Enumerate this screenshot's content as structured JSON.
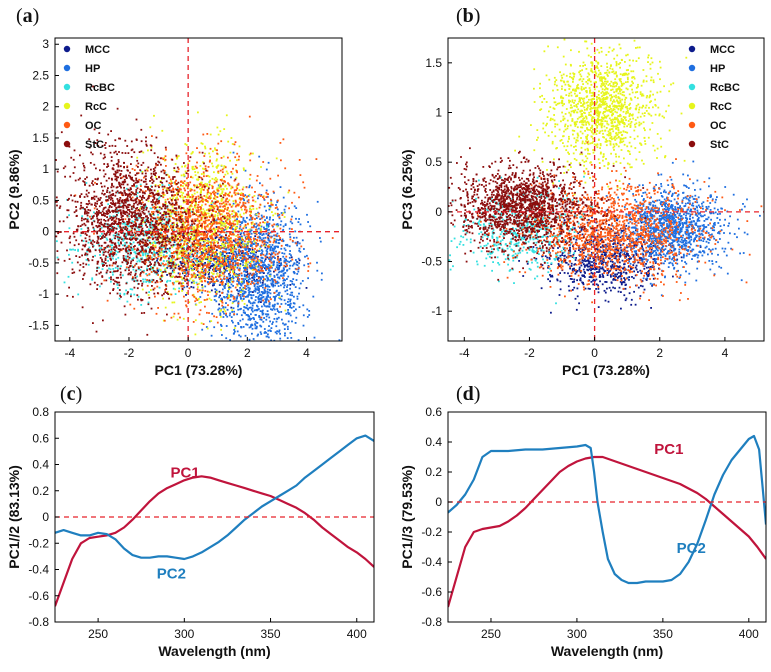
{
  "chart_data": [
    {
      "id": "a",
      "panel_label": "a",
      "type": "scatter",
      "xlabel": "PC1 (73.28%)",
      "ylabel": "PC2 (9.86%)",
      "xlim": [
        -4.5,
        5.2
      ],
      "ylim": [
        -1.75,
        3.1
      ],
      "xticks": [
        -4,
        -2,
        0,
        2,
        4
      ],
      "yticks": [
        -1.5,
        -1,
        -0.5,
        0,
        0.5,
        1,
        1.5,
        2,
        2.5,
        3
      ],
      "ref_lines": {
        "x": 0,
        "y": 0
      },
      "legend": "top-left",
      "series": [
        {
          "name": "MCC",
          "color": "#0d1b8c",
          "n": 500,
          "cx": 1.0,
          "cy": -0.45,
          "sx": 1.0,
          "sy": 0.25
        },
        {
          "name": "HP",
          "color": "#1f6fe0",
          "n": 1300,
          "cx": 2.4,
          "cy": -0.7,
          "sx": 0.8,
          "sy": 0.6
        },
        {
          "name": "RcBC",
          "color": "#33e0e0",
          "n": 600,
          "cx": -1.5,
          "cy": -0.2,
          "sx": 1.1,
          "sy": 0.4
        },
        {
          "name": "RcC",
          "color": "#e6f51c",
          "n": 1000,
          "cx": 0.5,
          "cy": 0.1,
          "sx": 1.0,
          "sy": 0.6
        },
        {
          "name": "OC",
          "color": "#ff5a14",
          "n": 1400,
          "cx": 0.6,
          "cy": 0.0,
          "sx": 1.3,
          "sy": 0.55
        },
        {
          "name": "StC",
          "color": "#8b0d0d",
          "n": 1600,
          "cx": -2.0,
          "cy": 0.2,
          "sx": 1.1,
          "sy": 0.55
        }
      ]
    },
    {
      "id": "b",
      "panel_label": "b",
      "type": "scatter",
      "xlabel": "PC1 (73.28%)",
      "ylabel": "PC3 (6.25%)",
      "xlim": [
        -4.5,
        5.2
      ],
      "ylim": [
        -1.3,
        1.75
      ],
      "xticks": [
        -4,
        -2,
        0,
        2,
        4
      ],
      "yticks": [
        -1,
        -0.5,
        0,
        0.5,
        1,
        1.5
      ],
      "ref_lines": {
        "x": 0,
        "y": 0
      },
      "legend": "top-right",
      "series": [
        {
          "name": "MCC",
          "color": "#0d1b8c",
          "n": 700,
          "cx": 0.3,
          "cy": -0.5,
          "sx": 0.9,
          "sy": 0.18
        },
        {
          "name": "HP",
          "color": "#1f6fe0",
          "n": 1100,
          "cx": 2.4,
          "cy": -0.15,
          "sx": 0.8,
          "sy": 0.2
        },
        {
          "name": "RcBC",
          "color": "#33e0e0",
          "n": 500,
          "cx": -2.2,
          "cy": -0.2,
          "sx": 1.0,
          "sy": 0.2
        },
        {
          "name": "RcC",
          "color": "#e6f51c",
          "n": 1200,
          "cx": 0.2,
          "cy": 1.05,
          "sx": 0.8,
          "sy": 0.28
        },
        {
          "name": "OC",
          "color": "#ff5a14",
          "n": 1300,
          "cx": 0.6,
          "cy": -0.2,
          "sx": 1.3,
          "sy": 0.25
        },
        {
          "name": "StC",
          "color": "#8b0d0d",
          "n": 1500,
          "cx": -2.2,
          "cy": 0.05,
          "sx": 1.0,
          "sy": 0.2
        }
      ]
    },
    {
      "id": "c",
      "panel_label": "c",
      "type": "line",
      "xlabel": "Wavelength (nm)",
      "ylabel": "PC1//2 (83.13%)",
      "xlim": [
        225,
        410
      ],
      "ylim": [
        -0.8,
        0.8
      ],
      "xticks": [
        250,
        300,
        350,
        400
      ],
      "yticks": [
        -0.8,
        -0.6,
        -0.4,
        -0.2,
        0,
        0.2,
        0.4,
        0.6,
        0.8
      ],
      "ref_lines": {
        "y": 0
      },
      "series": [
        {
          "name": "PC1",
          "color": "#c0143c",
          "x": [
            225,
            230,
            235,
            240,
            245,
            250,
            255,
            260,
            265,
            270,
            275,
            280,
            285,
            290,
            295,
            300,
            305,
            310,
            315,
            320,
            325,
            330,
            335,
            340,
            345,
            350,
            355,
            360,
            365,
            370,
            375,
            380,
            385,
            390,
            395,
            400,
            405,
            410
          ],
          "y": [
            -0.68,
            -0.5,
            -0.32,
            -0.2,
            -0.16,
            -0.15,
            -0.14,
            -0.12,
            -0.08,
            -0.02,
            0.05,
            0.12,
            0.18,
            0.22,
            0.25,
            0.28,
            0.3,
            0.31,
            0.3,
            0.28,
            0.26,
            0.24,
            0.22,
            0.2,
            0.18,
            0.16,
            0.13,
            0.1,
            0.07,
            0.03,
            -0.02,
            -0.08,
            -0.13,
            -0.18,
            -0.23,
            -0.27,
            -0.32,
            -0.38
          ]
        },
        {
          "name": "PC2",
          "color": "#1f7fbf",
          "x": [
            225,
            230,
            235,
            240,
            245,
            250,
            255,
            260,
            265,
            270,
            275,
            280,
            285,
            290,
            295,
            300,
            305,
            310,
            315,
            320,
            325,
            330,
            335,
            340,
            345,
            350,
            355,
            360,
            365,
            370,
            375,
            380,
            385,
            390,
            395,
            400,
            405,
            410
          ],
          "y": [
            -0.12,
            -0.1,
            -0.12,
            -0.14,
            -0.14,
            -0.12,
            -0.13,
            -0.17,
            -0.24,
            -0.29,
            -0.31,
            -0.31,
            -0.3,
            -0.3,
            -0.31,
            -0.32,
            -0.3,
            -0.27,
            -0.23,
            -0.19,
            -0.14,
            -0.08,
            -0.02,
            0.03,
            0.08,
            0.12,
            0.16,
            0.2,
            0.24,
            0.3,
            0.35,
            0.4,
            0.45,
            0.5,
            0.55,
            0.6,
            0.62,
            0.58
          ]
        }
      ],
      "annotations": [
        {
          "text": "PC1",
          "x": 292,
          "y": 0.3,
          "color": "#c0143c"
        },
        {
          "text": "PC2",
          "x": 284,
          "y": -0.47,
          "color": "#1f7fbf"
        }
      ]
    },
    {
      "id": "d",
      "panel_label": "d",
      "type": "line",
      "xlabel": "Wavelength (nm)",
      "ylabel": "PC1//3 (79.53%)",
      "xlim": [
        225,
        410
      ],
      "ylim": [
        -0.8,
        0.6
      ],
      "xticks": [
        250,
        300,
        350,
        400
      ],
      "yticks": [
        -0.8,
        -0.6,
        -0.4,
        -0.2,
        0,
        0.2,
        0.4,
        0.6
      ],
      "ref_lines": {
        "y": 0
      },
      "series": [
        {
          "name": "PC1",
          "color": "#c0143c",
          "x": [
            225,
            230,
            235,
            240,
            245,
            250,
            255,
            260,
            265,
            270,
            275,
            280,
            285,
            290,
            295,
            300,
            305,
            310,
            315,
            320,
            325,
            330,
            335,
            340,
            345,
            350,
            355,
            360,
            365,
            370,
            375,
            380,
            385,
            390,
            395,
            400,
            405,
            410
          ],
          "y": [
            -0.7,
            -0.5,
            -0.3,
            -0.2,
            -0.18,
            -0.17,
            -0.16,
            -0.13,
            -0.09,
            -0.04,
            0.02,
            0.08,
            0.14,
            0.2,
            0.24,
            0.27,
            0.29,
            0.3,
            0.3,
            0.28,
            0.26,
            0.24,
            0.22,
            0.2,
            0.18,
            0.16,
            0.14,
            0.12,
            0.09,
            0.06,
            0.02,
            -0.03,
            -0.08,
            -0.13,
            -0.18,
            -0.23,
            -0.3,
            -0.38
          ]
        },
        {
          "name": "PC2",
          "color": "#1f7fbf",
          "x": [
            225,
            230,
            235,
            240,
            245,
            250,
            255,
            260,
            270,
            280,
            290,
            300,
            305,
            308,
            310,
            312,
            315,
            318,
            322,
            326,
            330,
            335,
            340,
            345,
            350,
            355,
            360,
            365,
            370,
            375,
            380,
            385,
            390,
            395,
            400,
            403,
            406,
            408,
            410
          ],
          "y": [
            -0.07,
            -0.02,
            0.05,
            0.15,
            0.3,
            0.34,
            0.34,
            0.34,
            0.35,
            0.35,
            0.36,
            0.37,
            0.38,
            0.36,
            0.2,
            0.0,
            -0.2,
            -0.38,
            -0.48,
            -0.52,
            -0.54,
            -0.54,
            -0.53,
            -0.53,
            -0.53,
            -0.52,
            -0.48,
            -0.4,
            -0.28,
            -0.12,
            0.05,
            0.18,
            0.28,
            0.35,
            0.42,
            0.44,
            0.35,
            0.1,
            -0.15
          ]
        }
      ],
      "annotations": [
        {
          "text": "PC1",
          "x": 345,
          "y": 0.32,
          "color": "#c0143c"
        },
        {
          "text": "PC2",
          "x": 358,
          "y": -0.34,
          "color": "#1f7fbf"
        }
      ]
    }
  ]
}
